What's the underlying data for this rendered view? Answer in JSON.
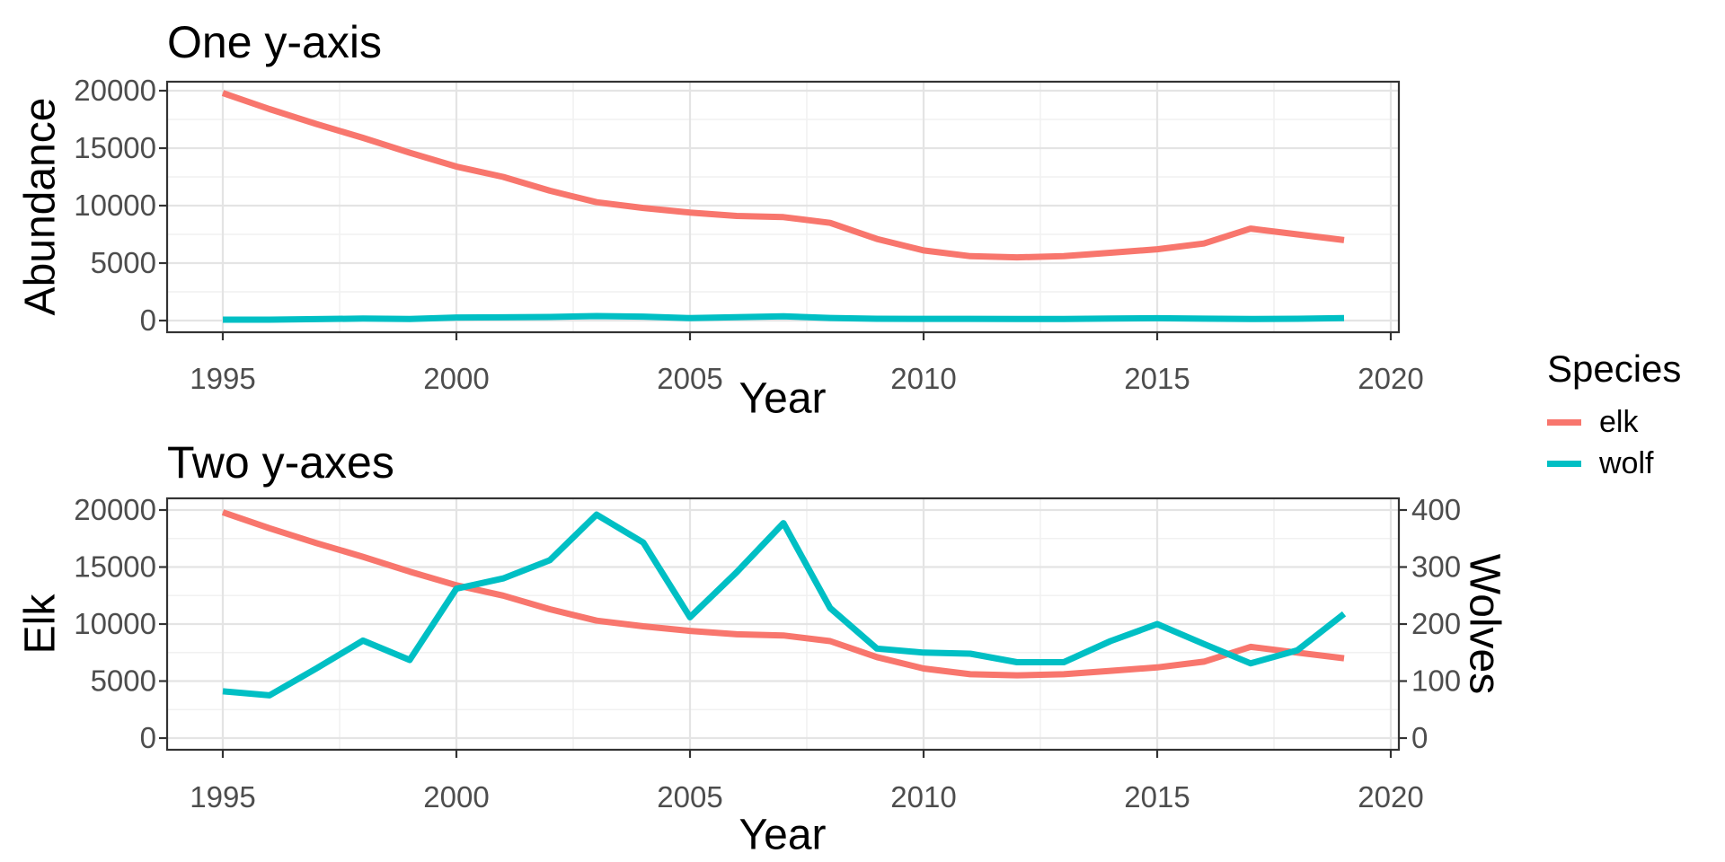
{
  "figure": {
    "background": "#FFFFFF"
  },
  "styles": {
    "elk_color": "#F8766D",
    "wolf_color": "#00BFC4",
    "grid_major_color": "#E4E4E4",
    "grid_minor_color": "#F1F1F1",
    "panel_border_color": "#333333",
    "tick_mark_color": "#333333",
    "tick_label_color": "#4D4D4D"
  },
  "legend": {
    "title": "Species",
    "items": [
      {
        "label": "elk",
        "color": "#F8766D"
      },
      {
        "label": "wolf",
        "color": "#00BFC4"
      }
    ]
  },
  "chart_data": [
    {
      "type": "line",
      "title": "One y-axis",
      "xlabel": "Year",
      "ylabel": "Abundance",
      "xlim": [
        1993.8,
        2020.2
      ],
      "ylim": [
        0,
        20000
      ],
      "xticks": [
        1995,
        2000,
        2005,
        2010,
        2015,
        2020
      ],
      "yticks": [
        0,
        5000,
        10000,
        15000,
        20000
      ],
      "grid": true,
      "legend_position": "right",
      "x": [
        1995,
        1996,
        1997,
        1998,
        1999,
        2000,
        2001,
        2002,
        2003,
        2004,
        2005,
        2006,
        2007,
        2008,
        2009,
        2010,
        2011,
        2012,
        2013,
        2014,
        2015,
        2016,
        2017,
        2018,
        2019
      ],
      "series": [
        {
          "name": "elk",
          "color": "#F8766D",
          "yaxis": "left",
          "values": [
            19800,
            18400,
            17100,
            15900,
            14600,
            13400,
            12500,
            11300,
            10300,
            9800,
            9400,
            9100,
            9000,
            8500,
            7100,
            6100,
            5600,
            5500,
            5600,
            5900,
            6200,
            6700,
            8000,
            7500,
            7000
          ]
        },
        {
          "name": "wolf",
          "color": "#00BFC4",
          "yaxis": "left",
          "values": [
            82,
            75,
            122,
            171,
            137,
            262,
            280,
            312,
            392,
            343,
            212,
            291,
            377,
            228,
            157,
            150,
            148,
            133,
            133,
            170,
            200,
            165,
            131,
            154,
            218
          ]
        }
      ]
    },
    {
      "type": "line",
      "title": "Two y-axes",
      "xlabel": "Year",
      "ylabel": "Elk",
      "ylabel_right": "Wolves",
      "xlim": [
        1993.8,
        2020.2
      ],
      "ylim": [
        0,
        20000
      ],
      "ylim_right": [
        0,
        400
      ],
      "xticks": [
        1995,
        2000,
        2005,
        2010,
        2015,
        2020
      ],
      "yticks": [
        0,
        5000,
        10000,
        15000,
        20000
      ],
      "yticks_right": [
        0,
        100,
        200,
        300,
        400
      ],
      "grid": true,
      "x": [
        1995,
        1996,
        1997,
        1998,
        1999,
        2000,
        2001,
        2002,
        2003,
        2004,
        2005,
        2006,
        2007,
        2008,
        2009,
        2010,
        2011,
        2012,
        2013,
        2014,
        2015,
        2016,
        2017,
        2018,
        2019
      ],
      "series": [
        {
          "name": "elk",
          "color": "#F8766D",
          "yaxis": "left",
          "values": [
            19800,
            18400,
            17100,
            15900,
            14600,
            13400,
            12500,
            11300,
            10300,
            9800,
            9400,
            9100,
            9000,
            8500,
            7100,
            6100,
            5600,
            5500,
            5600,
            5900,
            6200,
            6700,
            8000,
            7500,
            7000
          ]
        },
        {
          "name": "wolf",
          "color": "#00BFC4",
          "yaxis": "right",
          "values": [
            82,
            75,
            122,
            171,
            137,
            262,
            280,
            312,
            392,
            343,
            212,
            291,
            377,
            228,
            157,
            150,
            148,
            133,
            133,
            170,
            200,
            165,
            131,
            154,
            218
          ]
        }
      ]
    }
  ]
}
